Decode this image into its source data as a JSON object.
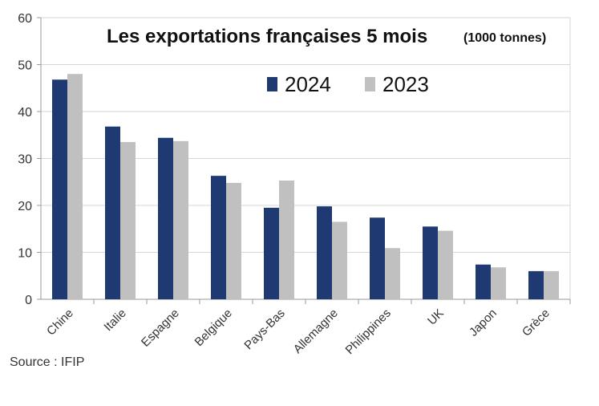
{
  "chart_data": {
    "type": "bar",
    "title": "Les exportations françaises 5 mois",
    "subtitle": "(1000 tonnes)",
    "categories": [
      "Chine",
      "Italie",
      "Espagne",
      "Belgique",
      "Pays-Bas",
      "Allemagne",
      "Philippines",
      "UK",
      "Japon",
      "Grèce"
    ],
    "series": [
      {
        "name": "2024",
        "color": "#1f3a73",
        "values": [
          46.8,
          36.8,
          34.4,
          26.3,
          19.5,
          19.8,
          17.4,
          15.5,
          7.4,
          6.0
        ]
      },
      {
        "name": "2023",
        "color": "#c0c0c0",
        "values": [
          48.0,
          33.5,
          33.7,
          24.8,
          25.3,
          16.5,
          10.9,
          14.6,
          6.8,
          6.0
        ]
      }
    ],
    "ylim": [
      0,
      60
    ],
    "yticks": [
      0,
      10,
      20,
      30,
      40,
      50,
      60
    ],
    "xlabel": "",
    "ylabel": "",
    "grid": true,
    "legend_position": "top-right"
  },
  "source_text": "Source : IFIP"
}
